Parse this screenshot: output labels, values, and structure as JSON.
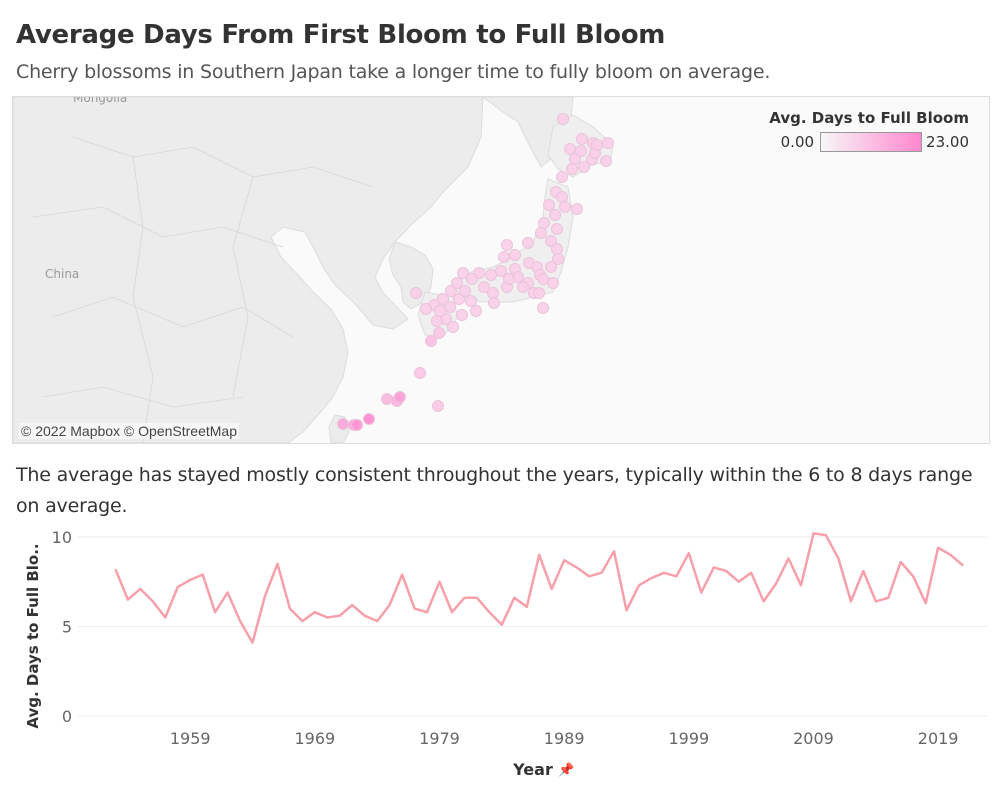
{
  "header": {
    "title": "Average Days From First Bloom to Full Bloom",
    "subtitle": "Cherry blossoms in Southern Japan take a longer time to fully bloom on average."
  },
  "map": {
    "attribution": "© 2022 Mapbox © OpenStreetMap",
    "labels": {
      "mongolia": "Mongolia",
      "china": "China"
    },
    "legend": {
      "title": "Avg. Days to Full Bloom",
      "min_label": "0.00",
      "max_label": "23.00",
      "color_min": "#f7f7f7",
      "color_max": "#ff87cf"
    }
  },
  "caption": "The average has stayed mostly consistent throughout the years, typically within the 6 to 8 days range on average.",
  "colors": {
    "line": "#f7a0ab",
    "background": "#ffffff",
    "grid": "#eeeeee"
  },
  "chart_data": {
    "type": "line",
    "title": "",
    "xlabel": "Year",
    "ylabel": "Avg. Days to Full Blo..",
    "xlim": [
      1950,
      2023
    ],
    "ylim": [
      0,
      10.5
    ],
    "x_ticks": [
      1959,
      1969,
      1979,
      1989,
      1999,
      2009,
      2019
    ],
    "y_ticks": [
      0,
      5,
      10
    ],
    "grid": "horizontal",
    "series": [
      {
        "x": [
          1953,
          1954,
          1955,
          1956,
          1957,
          1958,
          1959,
          1960,
          1961,
          1962,
          1963,
          1964,
          1965,
          1966,
          1967,
          1968,
          1969,
          1970,
          1971,
          1972,
          1973,
          1974,
          1975,
          1976,
          1977,
          1978,
          1979,
          1980,
          1981,
          1982,
          1983,
          1984,
          1985,
          1986,
          1987,
          1988,
          1989,
          1990,
          1991,
          1992,
          1993,
          1994,
          1995,
          1996,
          1997,
          1998,
          1999,
          2000,
          2001,
          2002,
          2003,
          2004,
          2005,
          2006,
          2007,
          2008,
          2009,
          2010,
          2011,
          2012,
          2013,
          2014,
          2015,
          2016,
          2017,
          2018,
          2019,
          2020,
          2021
        ],
        "y": [
          8.2,
          6.5,
          7.1,
          6.4,
          5.5,
          7.2,
          7.6,
          7.9,
          5.8,
          6.9,
          5.3,
          4.1,
          6.7,
          8.5,
          6.0,
          5.3,
          5.8,
          5.5,
          5.6,
          6.2,
          5.6,
          5.3,
          6.2,
          7.9,
          6.0,
          5.8,
          7.5,
          5.8,
          6.6,
          6.6,
          5.8,
          5.1,
          6.6,
          6.1,
          9.0,
          7.1,
          8.7,
          8.3,
          7.8,
          8.0,
          9.2,
          5.9,
          7.3,
          7.7,
          8.0,
          7.8,
          9.1,
          6.9,
          8.3,
          8.1,
          7.5,
          8.0,
          6.4,
          7.4,
          8.8,
          7.3,
          10.2,
          10.1,
          8.8,
          6.4,
          8.1,
          6.4,
          6.6,
          8.6,
          7.8,
          6.3,
          9.4,
          9.0,
          8.4
        ]
      }
    ]
  }
}
